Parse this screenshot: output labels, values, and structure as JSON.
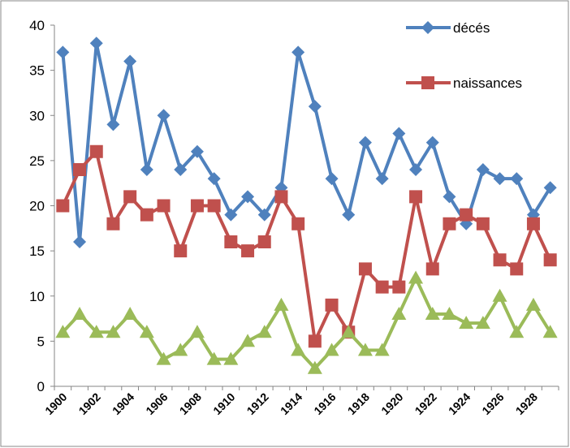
{
  "chart_data": {
    "type": "line",
    "categories": [
      "1900",
      null,
      "1902",
      null,
      "1904",
      null,
      "1906",
      null,
      "1908",
      null,
      "1910",
      null,
      "1912",
      null,
      "1914",
      null,
      "1916",
      null,
      "1918",
      null,
      "1920",
      null,
      "1922",
      null,
      "1924",
      null,
      "1926",
      null,
      "1928",
      null
    ],
    "series": [
      {
        "name": "décés",
        "color": "#4f81bd",
        "marker": "diamond",
        "values": [
          37,
          16,
          38,
          29,
          36,
          24,
          30,
          24,
          26,
          23,
          19,
          21,
          19,
          22,
          37,
          31,
          23,
          19,
          27,
          23,
          28,
          24,
          27,
          21,
          18,
          24,
          23,
          23,
          19,
          22
        ]
      },
      {
        "name": "naissances",
        "color": "#c0504d",
        "marker": "square",
        "values": [
          20,
          24,
          26,
          18,
          21,
          19,
          20,
          15,
          20,
          20,
          16,
          15,
          16,
          21,
          18,
          5,
          9,
          6,
          13,
          11,
          11,
          21,
          13,
          18,
          19,
          18,
          14,
          13,
          18,
          14
        ]
      },
      {
        "color": "#9bbb59",
        "marker": "triangle",
        "values": [
          6,
          8,
          6,
          6,
          8,
          6,
          3,
          4,
          6,
          3,
          3,
          5,
          6,
          9,
          4,
          2,
          4,
          6,
          4,
          4,
          8,
          12,
          8,
          8,
          7,
          7,
          10,
          6,
          9,
          6
        ]
      }
    ],
    "ylim": [
      0,
      40
    ],
    "yticks": [
      0,
      5,
      10,
      15,
      20,
      25,
      30,
      35,
      40
    ],
    "grid": false,
    "legend": "top-right"
  }
}
